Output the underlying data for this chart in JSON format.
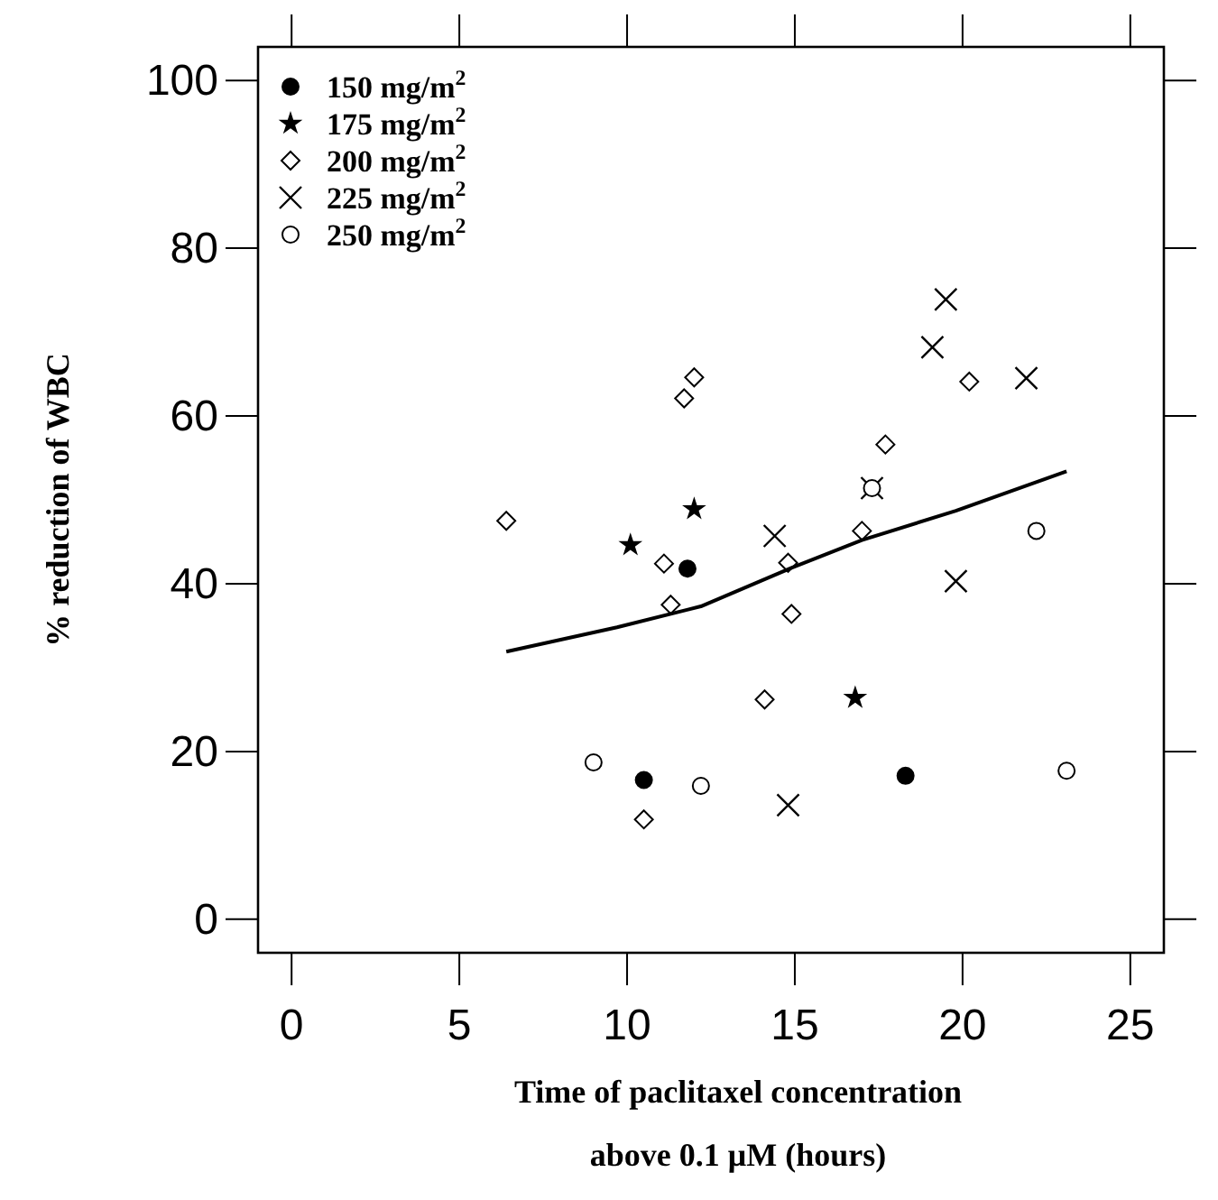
{
  "chart_data": {
    "type": "scatter",
    "xlabel": "Time of paclitaxel concentration\nabove 0.1 μM (hours)",
    "ylabel": "% reduction of WBC",
    "xlim": [
      -1,
      26
    ],
    "ylim": [
      -4,
      104
    ],
    "xticks": [
      0,
      5,
      10,
      15,
      20,
      25
    ],
    "yticks": [
      0,
      20,
      40,
      60,
      80,
      100
    ],
    "grid": false,
    "legend": "top left",
    "series": [
      {
        "name": "150 mg/m$^{2}$",
        "color": "#000000",
        "marker": "circle",
        "x": [
          11.8,
          10.5,
          18.3
        ],
        "values": [
          41.8,
          16.6,
          17.1
        ]
      },
      {
        "name": "175 mg/m$^{2}$",
        "color": "#000000",
        "marker": "star",
        "x": [
          12.0,
          10.1,
          16.8
        ],
        "values": [
          48.9,
          44.6,
          26.4
        ]
      },
      {
        "name": "200 mg/m$^{2}$",
        "color": "#000000",
        "marker": "diamond",
        "x": [
          12.0,
          11.7,
          20.2,
          17.7,
          6.4,
          11.1,
          11.3,
          17.0,
          14.8,
          14.9,
          14.1,
          10.5
        ],
        "values": [
          64.6,
          62.1,
          64.1,
          56.6,
          47.5,
          42.4,
          37.5,
          46.3,
          42.5,
          36.4,
          26.2,
          11.9
        ]
      },
      {
        "name": "225 mg/m$^{2}$",
        "color": "#000000",
        "marker": "cross",
        "x": [
          19.5,
          19.1,
          21.9,
          17.3,
          14.4,
          19.8,
          14.8
        ],
        "values": [
          73.9,
          68.2,
          64.5,
          51.4,
          45.7,
          40.3,
          13.6
        ]
      },
      {
        "name": "250 mg/m$^{2}$",
        "color": "#000000",
        "marker": "circle",
        "x": [
          9.0,
          12.2,
          22.2,
          23.1,
          17.3
        ],
        "values": [
          18.7,
          15.9,
          46.3,
          17.7,
          51.4
        ]
      },
      {
        "type": "line",
        "color": "#000000",
        "marker": "none",
        "x": [
          6.4,
          9.7,
          12.2,
          14.9,
          17.0,
          19.8,
          23.1
        ],
        "values": [
          31.9,
          34.8,
          37.3,
          41.9,
          45.2,
          48.7,
          53.4
        ]
      }
    ]
  }
}
